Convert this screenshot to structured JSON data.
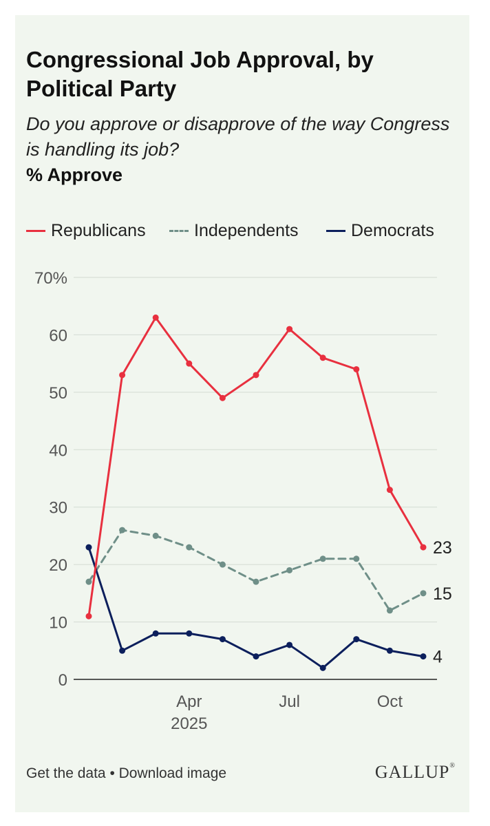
{
  "header": {
    "title": "Congressional Job Approval, by Political Party",
    "subtitle": "Do you approve or disapprove of the way Congress is handling its job?",
    "measure": "% Approve"
  },
  "footer": {
    "get_data": "Get the data",
    "separator": "•",
    "download": "Download image",
    "logo": "GALLUP",
    "logo_mark": "®"
  },
  "chart_data": {
    "type": "line",
    "ylim": [
      0,
      70
    ],
    "yticks": [
      0,
      10,
      20,
      30,
      40,
      50,
      60,
      70
    ],
    "ytick_labels": [
      "0",
      "10",
      "20",
      "30",
      "40",
      "50",
      "60",
      "70%"
    ],
    "grid": true,
    "legend_position": "top",
    "x": [
      "2025-01",
      "2025-02",
      "2025-03",
      "2025-04",
      "2025-05",
      "2025-06",
      "2025-07",
      "2025-08",
      "2025-09",
      "2025-10",
      "2025-11"
    ],
    "xtick_labels": [
      {
        "x": "2025-04",
        "label": "Apr",
        "sublabel": "2025"
      },
      {
        "x": "2025-07",
        "label": "Jul",
        "sublabel": ""
      },
      {
        "x": "2025-10",
        "label": "Oct",
        "sublabel": ""
      }
    ],
    "series": [
      {
        "name": "Republicans",
        "color": "#e8303f",
        "dashed": false,
        "values": [
          11,
          53,
          63,
          55,
          49,
          53,
          61,
          56,
          54,
          33,
          23
        ],
        "end_label": "23"
      },
      {
        "name": "Independents",
        "color": "#6f8f88",
        "dashed": true,
        "values": [
          17,
          26,
          25,
          23,
          20,
          17,
          19,
          21,
          21,
          12,
          15
        ],
        "end_label": "15"
      },
      {
        "name": "Democrats",
        "color": "#0c1f5c",
        "dashed": false,
        "values": [
          23,
          5,
          8,
          8,
          7,
          4,
          6,
          2,
          7,
          5,
          4
        ],
        "end_label": "4"
      }
    ]
  }
}
